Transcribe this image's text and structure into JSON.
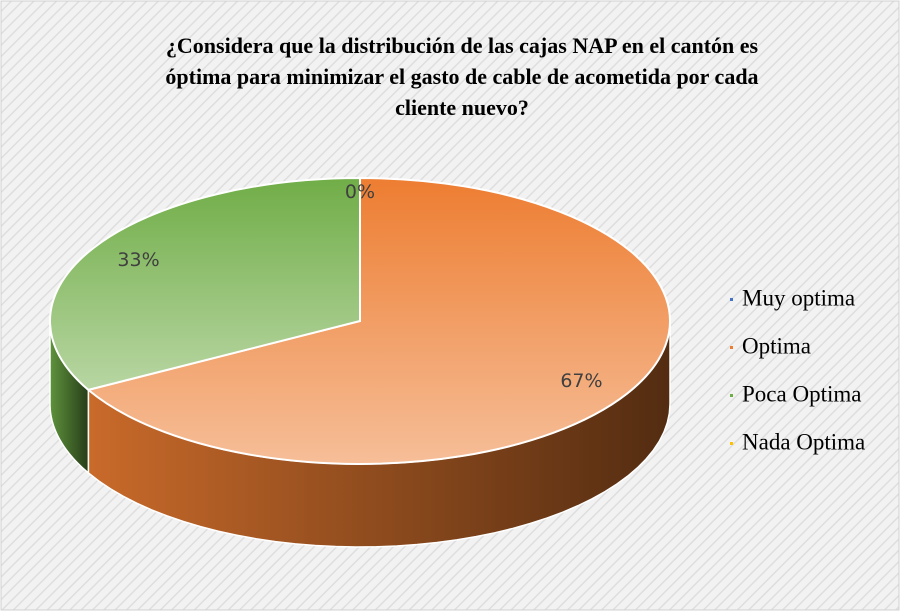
{
  "chart_data": {
    "type": "pie3d",
    "title": [
      "¿Considera que la distribución de las cajas NAP en el cantón es",
      "óptima para minimizar el gasto de cable de acometida por cada",
      "cliente nuevo?"
    ],
    "categories": [
      "Muy optima",
      "Optima",
      "Poca Optima",
      "Nada Optima"
    ],
    "values": [
      0,
      67,
      33,
      null
    ],
    "value_labels": [
      "0%",
      "67%",
      "33%",
      null
    ],
    "colors": [
      "#4472c4",
      "#ed7d31",
      "#70ad47",
      "#ffc000"
    ],
    "legend": "right"
  }
}
